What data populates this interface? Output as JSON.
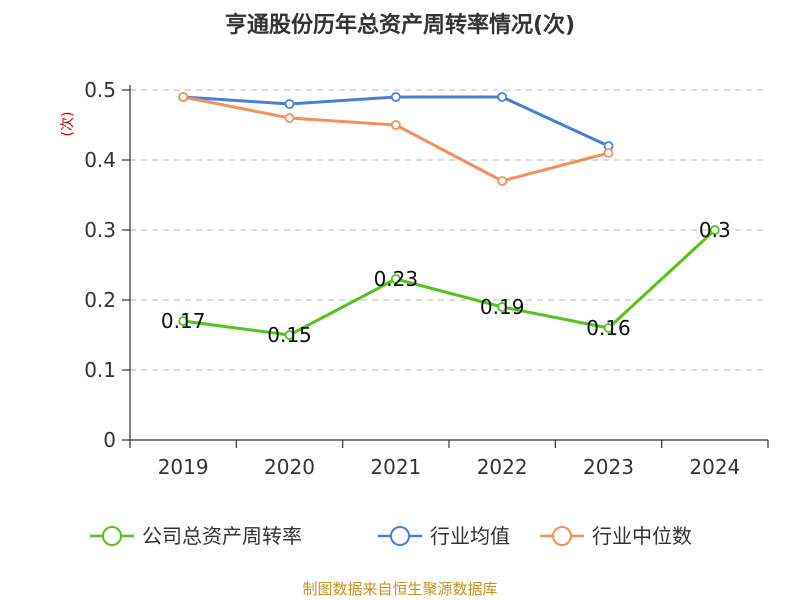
{
  "chart_data": {
    "type": "line",
    "title": "亨通股份历年总资产周转率情况(次)",
    "ylabel": "(次)",
    "xlabel": "",
    "categories": [
      "2019",
      "2020",
      "2021",
      "2022",
      "2023",
      "2024"
    ],
    "ylim": [
      0,
      0.5
    ],
    "yticks": [
      "0",
      "0.1",
      "0.2",
      "0.3",
      "0.4",
      "0.5"
    ],
    "grid": true,
    "legend_position": "bottom",
    "series": [
      {
        "name": "公司总资产周转率",
        "color": "#52c41a",
        "values": [
          0.17,
          0.15,
          0.23,
          0.19,
          0.16,
          0.3
        ],
        "labels": [
          "0.17",
          "0.15",
          "0.23",
          "0.19",
          "0.16",
          "0.3"
        ]
      },
      {
        "name": "行业均值",
        "color": "#4a7fd8",
        "values": [
          0.49,
          0.48,
          0.49,
          0.49,
          0.42,
          null
        ]
      },
      {
        "name": "行业中位数",
        "color": "#f4915b",
        "values": [
          0.49,
          0.46,
          0.45,
          0.37,
          0.41,
          null
        ]
      }
    ],
    "source": "制图数据来自恒生聚源数据库"
  }
}
